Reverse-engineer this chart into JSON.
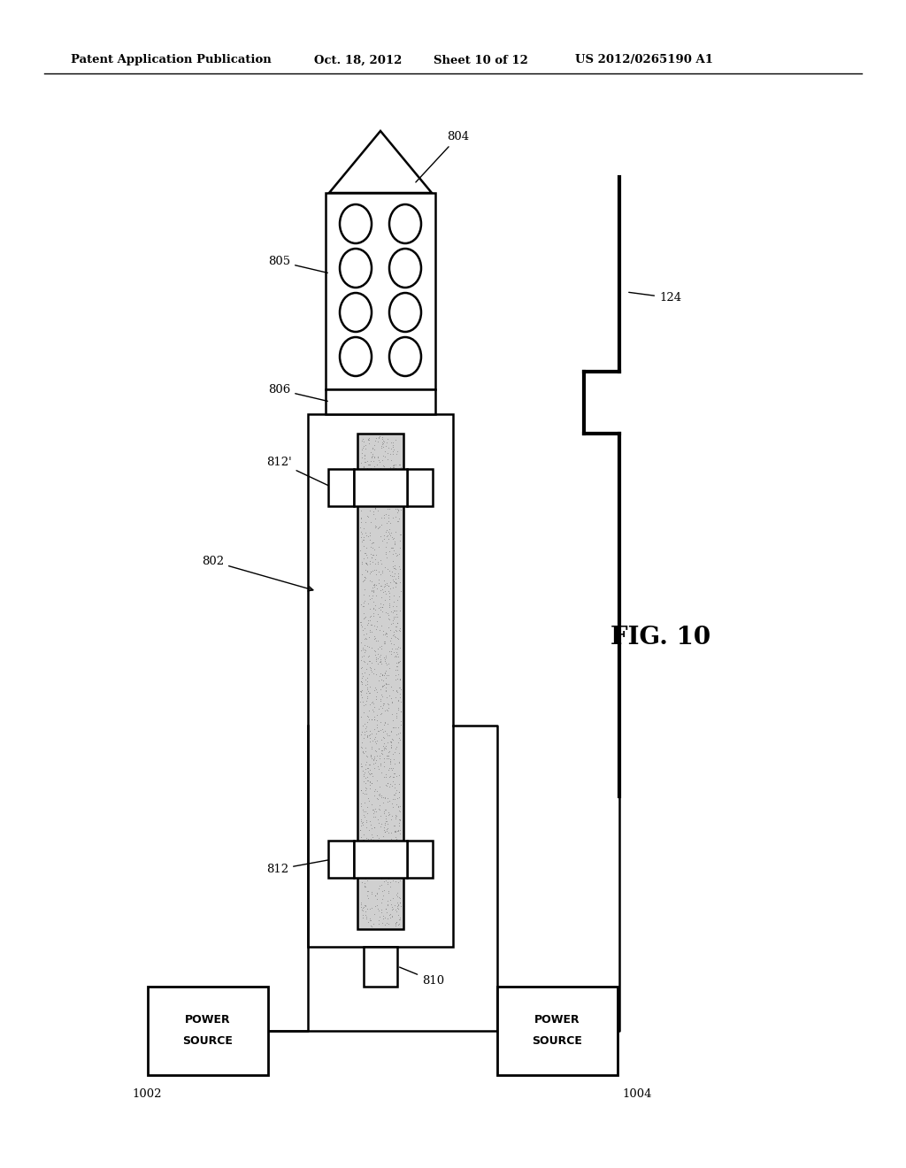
{
  "bg_color": "#ffffff",
  "header_text": "Patent Application Publication",
  "header_date": "Oct. 18, 2012",
  "header_sheet": "Sheet 10 of 12",
  "header_patent": "US 2012/0265190 A1",
  "fig_label": "FIG. 10",
  "lw": 1.8,
  "black": "#000000"
}
